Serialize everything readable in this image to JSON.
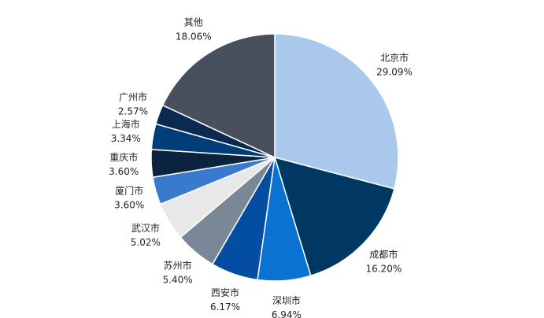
{
  "chart_data": {
    "type": "pie",
    "categories": [
      "北京市",
      "成都市",
      "深圳市",
      "西安市",
      "苏州市",
      "武汉市",
      "厦门市",
      "重庆市",
      "上海市",
      "广州市",
      "其他"
    ],
    "values": [
      29.09,
      16.2,
      6.94,
      6.17,
      5.4,
      5.02,
      3.6,
      3.6,
      3.34,
      2.57,
      18.06
    ],
    "value_labels": [
      "29.09%",
      "16.20%",
      "6.94%",
      "6.17%",
      "5.40%",
      "5.02%",
      "3.60%",
      "3.60%",
      "3.34%",
      "2.57%",
      "18.06%"
    ],
    "colors": [
      "#aac8ec",
      "#003864",
      "#0a72d0",
      "#034ea2",
      "#7a8797",
      "#e8e8e8",
      "#3a7acc",
      "#0a2440",
      "#003e7a",
      "#0a2a50",
      "#47505c"
    ]
  }
}
